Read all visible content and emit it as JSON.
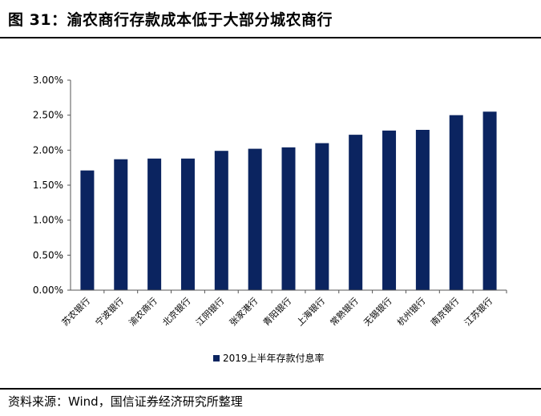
{
  "figure": {
    "title": "图 31：渝农商行存款成本低于大部分城农商行",
    "source": "资料来源：Wind，国信证券经济研究所整理"
  },
  "chart_data": {
    "type": "bar",
    "title": "",
    "xlabel": "",
    "ylabel": "",
    "categories": [
      "苏农银行",
      "宁波银行",
      "渝农商行",
      "北京银行",
      "江阴银行",
      "张家港行",
      "青阳银行",
      "上海银行",
      "常熟银行",
      "无锡银行",
      "杭州银行",
      "南京银行",
      "江苏银行"
    ],
    "series": [
      {
        "name": "2019上半年存款付息率",
        "values": [
          1.71,
          1.87,
          1.88,
          1.88,
          1.99,
          2.02,
          2.04,
          2.1,
          2.22,
          2.28,
          2.29,
          2.5,
          2.55
        ],
        "color": "#0B2460"
      }
    ],
    "y_ticks": [
      "0.00%",
      "0.50%",
      "1.00%",
      "1.50%",
      "2.00%",
      "2.50%",
      "3.00%"
    ],
    "ylim": [
      0,
      3
    ],
    "grid": false,
    "legend_position": "bottom"
  }
}
